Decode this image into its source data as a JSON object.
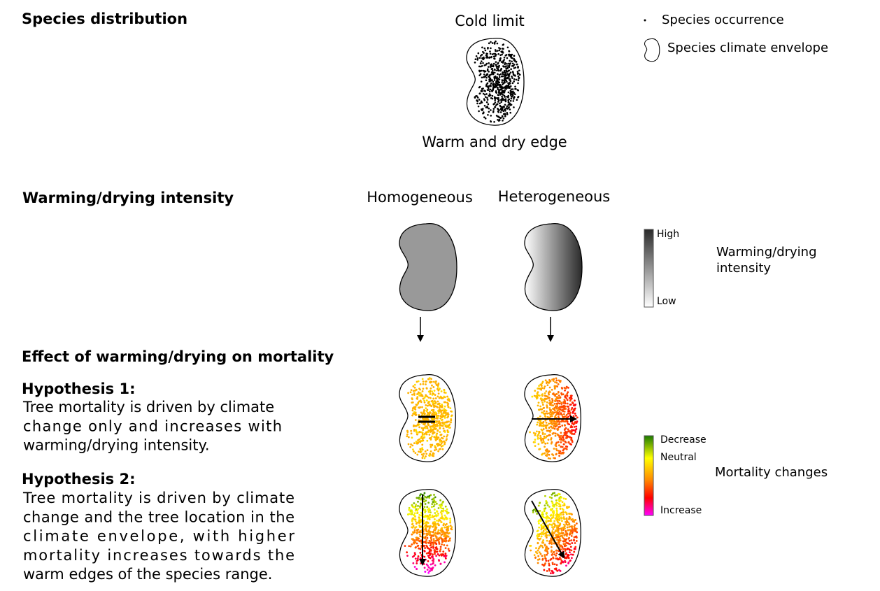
{
  "species_distribution": {
    "title": "Species distribution",
    "top_label": "Cold limit",
    "bottom_label": "Warm and dry edge"
  },
  "legend": {
    "occurrence": "Species occurrence",
    "envelope": "Species climate envelope"
  },
  "intensity": {
    "title": "Warming/drying intensity",
    "columns": [
      "Homogeneous",
      "Heterogeneous"
    ],
    "scale": {
      "high": "High",
      "low": "Low",
      "label_lines": [
        "Warming/drying",
        "intensity"
      ]
    }
  },
  "effect": {
    "title": "Effect of warming/drying on mortality",
    "hypotheses": [
      {
        "title": "Hypothesis 1:",
        "lines": [
          "Tree mortality is driven by climate",
          "change only and increases with",
          "warming/drying intensity."
        ]
      },
      {
        "title": "Hypothesis 2:",
        "lines": [
          "Tree mortality is driven by climate",
          "change and the tree location in the",
          "climate envelope, with higher",
          "mortality increases towards the",
          "warm edges of the species range."
        ]
      }
    ]
  },
  "mortality_scale": {
    "decrease": "Decrease",
    "neutral": "Neutral",
    "increase": "Increase",
    "label": "Mortality changes"
  }
}
